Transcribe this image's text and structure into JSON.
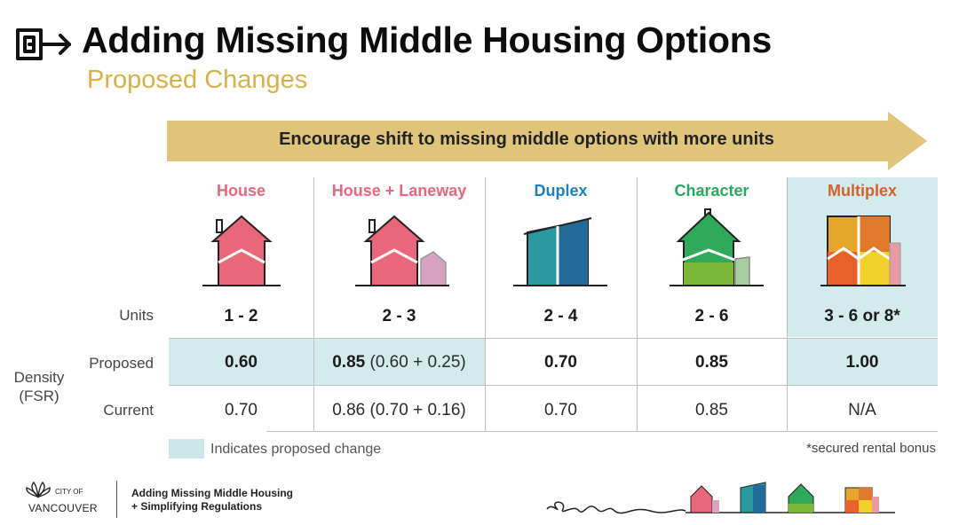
{
  "header": {
    "title": "Adding Missing Middle Housing Options",
    "subtitle": "Proposed Changes",
    "arrow_text": "Encourage shift to missing middle options with more units"
  },
  "colors": {
    "accent_gold": "#d6b246",
    "house": "#ea6e7e",
    "house_laneway": "#ea6e7e",
    "duplex": "#1e7fc0",
    "character": "#27a85c",
    "multiplex": "#d2622a",
    "proposed_highlight": "#d4ebee"
  },
  "table": {
    "row_labels": {
      "units": "Units",
      "density": "Density",
      "fsr": "(FSR)",
      "proposed": "Proposed",
      "current": "Current"
    },
    "columns": [
      {
        "name": "House",
        "icon": "house-icon",
        "units": "1 - 2",
        "proposed_bold": "0.60",
        "proposed_rest": "",
        "current": "0.70"
      },
      {
        "name": "House + Laneway",
        "icon": "house-laneway-icon",
        "units": "2 - 3",
        "proposed_bold": "0.85",
        "proposed_rest": " (0.60 + 0.25)",
        "current": "0.86 (0.70 + 0.16)"
      },
      {
        "name": "Duplex",
        "icon": "duplex-icon",
        "units": "2 - 4",
        "proposed_bold": "0.70",
        "proposed_rest": "",
        "current": "0.70"
      },
      {
        "name": "Character",
        "icon": "character-house-icon",
        "units": "2 - 6",
        "proposed_bold": "0.85",
        "proposed_rest": "",
        "current": "0.85"
      },
      {
        "name": "Multiplex",
        "icon": "multiplex-icon",
        "units": "3 - 6 or 8*",
        "proposed_bold": "1.00",
        "proposed_rest": "",
        "current": "N/A"
      }
    ]
  },
  "legend": {
    "text": "Indicates proposed change",
    "footnote": "*secured rental bonus"
  },
  "footer": {
    "city_line1": "CITY OF",
    "city_line2": "VANCOUVER",
    "text_line1": "Adding Missing Middle Housing",
    "text_line2": "+ Simplifying Regulations"
  }
}
